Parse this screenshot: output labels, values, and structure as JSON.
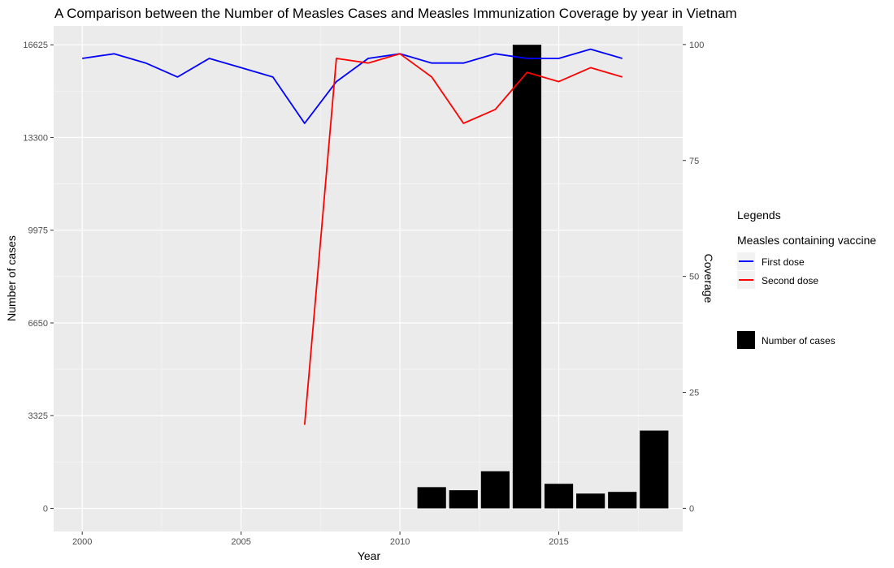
{
  "chart_data": {
    "type": "bar+line",
    "title": "A Comparison between the Number of Measles Cases and Measles Immunization Coverage by year in Vietnam",
    "xlabel": "Year",
    "ylabel_left": "Number of cases",
    "ylabel_right": "Coverage",
    "x_ticks": [
      2000,
      2005,
      2010,
      2015
    ],
    "x_range": [
      1999.1,
      2018.9
    ],
    "y_left_ticks": [
      "0",
      "3325",
      "6650",
      "9975",
      "13300",
      "16625"
    ],
    "y_left_range": [
      -830,
      17300
    ],
    "y_right_ticks": [
      "0",
      "25",
      "50",
      "75",
      "100"
    ],
    "y_right_range": [
      -5,
      104
    ],
    "grid": true,
    "legend_position": "right",
    "legend": {
      "heading": "Legends",
      "group_title": "Measles containing vaccine",
      "line_entries": [
        {
          "label": "First dose",
          "color": "#0000ff"
        },
        {
          "label": "Second dose",
          "color": "#ff0000"
        }
      ],
      "bar_entry": {
        "label": "Number of cases",
        "color": "#000000"
      }
    },
    "bars": {
      "name": "Number of cases",
      "color": "#000000",
      "x": [
        2011,
        2012,
        2013,
        2014,
        2015,
        2016,
        2017,
        2018
      ],
      "values": [
        760,
        650,
        1330,
        16625,
        880,
        530,
        590,
        2790
      ]
    },
    "series": [
      {
        "name": "First dose",
        "color": "#0000ff",
        "x": [
          2000,
          2001,
          2002,
          2003,
          2004,
          2005,
          2006,
          2007,
          2008,
          2009,
          2010,
          2011,
          2012,
          2013,
          2014,
          2015,
          2016,
          2017
        ],
        "values": [
          97,
          98,
          96,
          93,
          97,
          95,
          93,
          83,
          92,
          97,
          98,
          96,
          96,
          98,
          97,
          97,
          99,
          97
        ]
      },
      {
        "name": "Second dose",
        "color": "#ff0000",
        "x": [
          2007,
          2008,
          2009,
          2010,
          2011,
          2012,
          2013,
          2014,
          2015,
          2016,
          2017
        ],
        "values": [
          18,
          97,
          96,
          98,
          93,
          83,
          86,
          94,
          92,
          95,
          93
        ]
      }
    ]
  }
}
